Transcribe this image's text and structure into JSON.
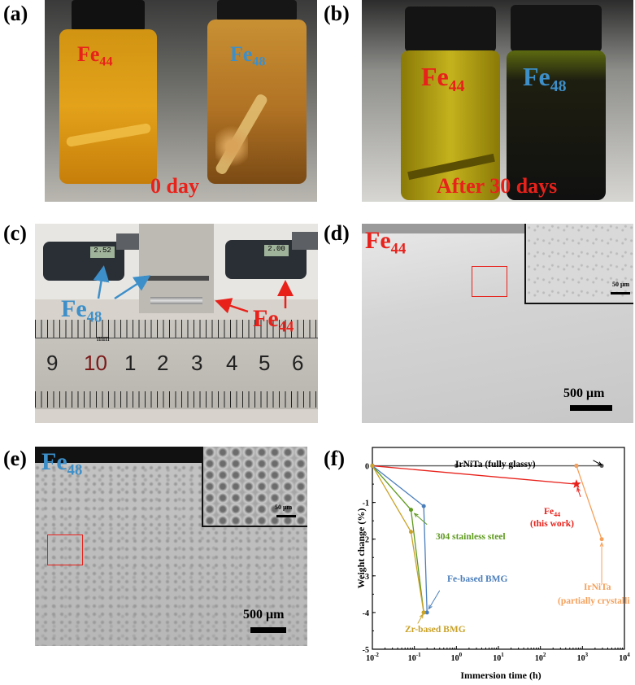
{
  "panels": {
    "a": {
      "label": "(a)",
      "fe44": "Fe",
      "fe44_sub": "44",
      "fe48": "Fe",
      "fe48_sub": "48",
      "caption": "0 day"
    },
    "b": {
      "label": "(b)",
      "fe44": "Fe",
      "fe44_sub": "44",
      "fe48": "Fe",
      "fe48_sub": "48",
      "caption": "After 30 days"
    },
    "c": {
      "label": "(c)",
      "fe48": "Fe",
      "fe48_sub": "48",
      "fe44": "Fe",
      "fe44_sub": "44",
      "mic_left": "2.52",
      "mic_right": "2.00",
      "ruler_numbers": [
        "9",
        "10",
        "1",
        "2",
        "3",
        "4",
        "5",
        "6"
      ],
      "ruler_unit": "mm"
    },
    "d": {
      "label": "(d)",
      "fe44": "Fe",
      "fe44_sub": "44",
      "scale_main": "500 μm",
      "scale_inset": "50 μm"
    },
    "e": {
      "label": "(e)",
      "fe48": "Fe",
      "fe48_sub": "48",
      "scale_main": "500 μm",
      "scale_inset": "50 μm"
    },
    "f": {
      "label": "(f)"
    }
  },
  "colors": {
    "red": "#e8211b",
    "blue": "#3d8fc9",
    "gray": "#595959",
    "green": "#5e9a1e",
    "gold": "#c9a227",
    "orange": "#f5a05a",
    "steelblue": "#4a7ebb"
  },
  "chart_data": {
    "type": "line",
    "xlabel": "Immersion time (h)",
    "ylabel": "Weight change (%)",
    "xscale": "log",
    "xlim": [
      0.01,
      10000
    ],
    "ylim": [
      -5,
      0.5
    ],
    "xticks": [
      "10^-2",
      "10^-1",
      "10^0",
      "10^1",
      "10^2",
      "10^3",
      "10^4"
    ],
    "yticks": [
      0,
      -1,
      -2,
      -3,
      -4,
      -5
    ],
    "series": [
      {
        "name": "IrNiTa (fully glassy)",
        "color": "#595959",
        "x": [
          0.01,
          1,
          720,
          2880
        ],
        "y": [
          0,
          0,
          0,
          0
        ]
      },
      {
        "name": "Fe44 (this work)",
        "color": "#e8211b",
        "x": [
          0.01,
          720
        ],
        "y": [
          0,
          -0.5
        ]
      },
      {
        "name": "304 stainless steel",
        "color": "#5e9a1e",
        "x": [
          0.01,
          0.083,
          0.167
        ],
        "y": [
          0,
          -1.2,
          -4
        ]
      },
      {
        "name": "Fe-based BMG",
        "color": "#4a7ebb",
        "x": [
          0.01,
          0.167,
          0.2
        ],
        "y": [
          0,
          -1.1,
          -4
        ]
      },
      {
        "name": "Zr-based BMG",
        "color": "#c9a227",
        "x": [
          0.01,
          0.083,
          0.167
        ],
        "y": [
          0,
          -1.8,
          -4
        ]
      },
      {
        "name": "IrNiTa (partially crystalline)",
        "color": "#f5a05a",
        "x": [
          720,
          2880
        ],
        "y": [
          0,
          -2
        ]
      }
    ],
    "annotations": {
      "irnita_glassy": "IrNiTa (fully glassy)",
      "fe44_line1": "Fe",
      "fe44_sub": "44",
      "fe44_line2": "(this work)",
      "ss304": "304 stainless steel",
      "febmg": "Fe-based BMG",
      "zrbmg": "Zr-based BMG",
      "irnita_pc1": "IrNiTa",
      "irnita_pc2": "(partially crystalline)"
    }
  }
}
